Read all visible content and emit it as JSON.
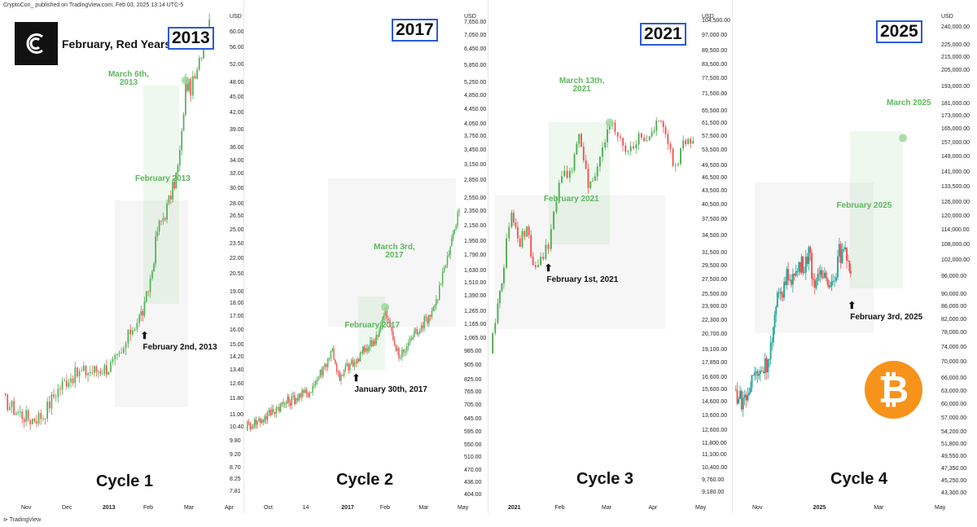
{
  "header": "CryptoCon_ published on TradingView.com, Feb 03, 2025 13:14 UTC-5",
  "title": "February, Red Years",
  "footer": "TradingView",
  "colors": {
    "up": "#26a69a",
    "up_green": "#4caf50",
    "down": "#ef5350",
    "annotation_green": "#5cb85c",
    "year_box": "#2a5bd7",
    "bitcoin": "#f7931a"
  },
  "icons": [
    "cryptocon-logo-icon",
    "bitcoin-icon",
    "arrow-up-icon",
    "tradingview-icon"
  ],
  "chart_data": [
    {
      "type": "candlestick",
      "cycle": "Cycle 1",
      "year_label": "2013",
      "unit": "USD",
      "scale": "log",
      "x_ticks": [
        "Nov",
        "Dec",
        "2013",
        "Feb",
        "Mar",
        "Apr"
      ],
      "y_ticks": [
        "64.00",
        "60.00",
        "56.00",
        "52.00",
        "48.00",
        "45.00",
        "42.00",
        "39.00",
        "36.00",
        "34.00",
        "32.00",
        "30.00",
        "28.00",
        "26.50",
        "25.00",
        "23.50",
        "22.00",
        "20.50",
        "19.00",
        "18.00",
        "17.00",
        "16.00",
        "15.00",
        "14.20",
        "13.40",
        "12.60",
        "11.80",
        "11.00",
        "10.40",
        "9.80",
        "9.20",
        "8.70",
        "8.25",
        "7.81"
      ],
      "ylim": [
        7.6,
        66
      ],
      "x_range": [
        "2012-10-15",
        "2013-04-08"
      ],
      "series": [
        [
          "2012-10-15",
          11.8
        ],
        [
          "2012-10-25",
          11.2
        ],
        [
          "2012-11-05",
          10.8
        ],
        [
          "2012-11-15",
          11.0
        ],
        [
          "2012-11-25",
          12.2
        ],
        [
          "2012-12-05",
          13.0
        ],
        [
          "2012-12-15",
          13.3
        ],
        [
          "2012-12-25",
          13.4
        ],
        [
          "2013-01-05",
          13.6
        ],
        [
          "2013-01-15",
          14.3
        ],
        [
          "2013-01-22",
          16.0
        ],
        [
          "2013-01-29",
          17.0
        ],
        [
          "2013-02-02",
          17.7
        ],
        [
          "2013-02-08",
          21.0
        ],
        [
          "2013-02-12",
          25.0
        ],
        [
          "2013-02-18",
          27.0
        ],
        [
          "2013-02-24",
          30.0
        ],
        [
          "2013-02-28",
          33.0
        ],
        [
          "2013-03-03",
          38.0
        ],
        [
          "2013-03-06",
          48.0
        ],
        [
          "2013-03-10",
          47.0
        ],
        [
          "2013-03-15",
          50.0
        ],
        [
          "2013-03-20",
          58.0
        ],
        [
          "2013-03-26",
          66.0
        ]
      ],
      "shade_range": [
        [
          "2013-01-10",
          11.4
        ],
        [
          "2013-03-08",
          28.5
        ]
      ],
      "green_box": [
        [
          "2013-02-01",
          18.0
        ],
        [
          "2013-03-01",
          47.5
        ]
      ],
      "annotations": [
        {
          "text": "February 2013",
          "color": "green",
          "at": [
            "2013-02-15",
            30.6
          ]
        },
        {
          "text": "February 2nd, 2013",
          "color": "black",
          "at": [
            "2013-02-02",
            16.1
          ],
          "arrow": true
        },
        {
          "text": "March 6th,\n2013",
          "color": "green",
          "at": [
            "2013-03-06",
            48.6
          ],
          "target": [
            "2013-03-06",
            48.6
          ]
        }
      ]
    },
    {
      "type": "candlestick",
      "cycle": "Cycle 2",
      "year_label": "2017",
      "unit": "USD",
      "scale": "log",
      "x_ticks": [
        "Oct",
        "14",
        "2017",
        "Feb",
        "Mar",
        "May"
      ],
      "y_ticks": [
        "7,650.00",
        "7,050.00",
        "6,450.00",
        "5,850.00",
        "5,250.00",
        "4,850.00",
        "4,450.00",
        "4,050.00",
        "3,750.00",
        "3,450.00",
        "3,150.00",
        "2,850.00",
        "2,550.00",
        "2,350.00",
        "2,150.00",
        "1,950.00",
        "1,790.00",
        "1,630.00",
        "1,510.00",
        "1,390.00",
        "1,265.00",
        "1,165.00",
        "1,065.00",
        "985.00",
        "905.00",
        "825.00",
        "765.00",
        "705.00",
        "645.00",
        "595.00",
        "550.00",
        "510.00",
        "470.00",
        "436.00",
        "404.00"
      ],
      "ylim": [
        395,
        8200
      ],
      "x_range": [
        "2016-10-01",
        "2017-05-25"
      ],
      "series": [
        [
          "2016-10-01",
          620
        ],
        [
          "2016-10-20",
          650
        ],
        [
          "2016-11-05",
          700
        ],
        [
          "2016-11-25",
          740
        ],
        [
          "2016-12-10",
          770
        ],
        [
          "2016-12-25",
          890
        ],
        [
          "2017-01-04",
          1000
        ],
        [
          "2017-01-12",
          820
        ],
        [
          "2017-01-20",
          900
        ],
        [
          "2017-01-30",
          920
        ],
        [
          "2017-02-08",
          1000
        ],
        [
          "2017-02-18",
          1050
        ],
        [
          "2017-02-26",
          1150
        ],
        [
          "2017-03-03",
          1270
        ],
        [
          "2017-03-10",
          1100
        ],
        [
          "2017-03-18",
          950
        ],
        [
          "2017-03-25",
          1000
        ],
        [
          "2017-04-01",
          1080
        ],
        [
          "2017-04-10",
          1150
        ],
        [
          "2017-04-20",
          1230
        ],
        [
          "2017-04-28",
          1350
        ],
        [
          "2017-05-05",
          1600
        ],
        [
          "2017-05-12",
          1800
        ],
        [
          "2017-05-18",
          2100
        ],
        [
          "2017-05-25",
          2500
        ]
      ],
      "shade_range": [
        [
          "2016-12-30",
          1150
        ],
        [
          "2017-05-20",
          2900
        ]
      ],
      "green_box": [
        [
          "2017-02-01",
          880
        ],
        [
          "2017-03-03",
          1390
        ]
      ],
      "annotations": [
        {
          "text": "February 2017",
          "color": "green",
          "at": [
            "2017-02-15",
            1120
          ]
        },
        {
          "text": "January 30th, 2017",
          "color": "black",
          "at": [
            "2017-01-30",
            870
          ],
          "arrow": true
        },
        {
          "text": "March 3rd,\n2017",
          "color": "green",
          "at": [
            "2017-03-03",
            1300
          ],
          "target": [
            "2017-03-03",
            1300
          ]
        }
      ]
    },
    {
      "type": "candlestick",
      "cycle": "Cycle 3",
      "year_label": "2021",
      "unit": "USD",
      "scale": "log",
      "x_ticks": [
        "2021",
        "Feb",
        "Mar",
        "Apr",
        "May"
      ],
      "y_ticks": [
        "104,500.00",
        "97,000.00",
        "89,500.00",
        "83,500.00",
        "77,500.00",
        "71,500.00",
        "65,500.00",
        "61,500.00",
        "57,500.00",
        "53,500.00",
        "49,500.00",
        "46,500.00",
        "43,500.00",
        "40,500.00",
        "37,500.00",
        "34,500.00",
        "31,500.00",
        "29,500.00",
        "27,500.00",
        "25,500.00",
        "23,900.00",
        "22,300.00",
        "20,700.00",
        "19,100.00",
        "17,850.00",
        "16,600.00",
        "15,600.00",
        "14,600.00",
        "13,600.00",
        "12,600.00",
        "11,800.00",
        "11,100.00",
        "10,400.00",
        "9,760.00",
        "9,180.00"
      ],
      "ylim": [
        8900,
        110000
      ],
      "x_range": [
        "2020-12-25",
        "2021-05-10"
      ],
      "series": [
        [
          "2020-12-25",
          19000
        ],
        [
          "2020-12-30",
          24000
        ],
        [
          "2021-01-03",
          30000
        ],
        [
          "2021-01-08",
          40000
        ],
        [
          "2021-01-12",
          33000
        ],
        [
          "2021-01-18",
          36000
        ],
        [
          "2021-01-22",
          30000
        ],
        [
          "2021-01-27",
          30500
        ],
        [
          "2021-02-01",
          33000
        ],
        [
          "2021-02-08",
          46000
        ],
        [
          "2021-02-15",
          48000
        ],
        [
          "2021-02-21",
          57000
        ],
        [
          "2021-02-27",
          45000
        ],
        [
          "2021-03-05",
          48000
        ],
        [
          "2021-03-10",
          57000
        ],
        [
          "2021-03-13",
          61000
        ],
        [
          "2021-03-20",
          58000
        ],
        [
          "2021-03-25",
          52000
        ],
        [
          "2021-04-01",
          59000
        ],
        [
          "2021-04-08",
          56000
        ],
        [
          "2021-04-14",
          64000
        ],
        [
          "2021-04-20",
          55000
        ],
        [
          "2021-04-25",
          49000
        ],
        [
          "2021-04-30",
          57000
        ],
        [
          "2021-05-08",
          58000
        ]
      ],
      "shade_range": [
        [
          "2020-12-28",
          21300
        ],
        [
          "2021-04-18",
          42500
        ]
      ],
      "green_box": [
        [
          "2021-02-01",
          33000
        ],
        [
          "2021-03-13",
          62000
        ]
      ],
      "annotations": [
        {
          "text": "February 2021",
          "color": "green",
          "at": [
            "2021-02-15",
            40500
          ]
        },
        {
          "text": "February 1st, 2021",
          "color": "black",
          "at": [
            "2021-02-01",
            30300
          ],
          "arrow": true
        },
        {
          "text": "March 13th,\n2021",
          "color": "green",
          "at": [
            "2021-03-13",
            62000
          ],
          "target": [
            "2021-03-13",
            62000
          ]
        }
      ]
    },
    {
      "type": "candlestick",
      "cycle": "Cycle 4",
      "year_label": "2025",
      "unit": "USD",
      "scale": "log",
      "x_ticks": [
        "Nov",
        "2025",
        "Mar",
        "May"
      ],
      "y_ticks": [
        "240,000.00",
        "225,000.00",
        "215,000.00",
        "205,000.00",
        "193,000.00",
        "181,000.00",
        "173,000.00",
        "165,000.00",
        "157,000.00",
        "149,000.00",
        "141,000.00",
        "133,500.00",
        "126,000.00",
        "120,000.00",
        "114,000.00",
        "108,000.00",
        "102,000.00",
        "96,000.00",
        "90,000.00",
        "86,000.00",
        "82,000.00",
        "78,000.00",
        "74,000.00",
        "70,000.00",
        "66,000.00",
        "63,000.00",
        "60,000.00",
        "57,000.00",
        "54,200.00",
        "51,800.00",
        "49,550.00",
        "47,350.00",
        "45,250.00",
        "43,300.00"
      ],
      "ylim": [
        42500,
        255000
      ],
      "x_range": [
        "2024-09-25",
        "2025-05-10"
      ],
      "series": [
        [
          "2024-09-25",
          63000
        ],
        [
          "2024-10-03",
          61000
        ],
        [
          "2024-10-10",
          62000
        ],
        [
          "2024-10-16",
          67000
        ],
        [
          "2024-10-24",
          68000
        ],
        [
          "2024-10-31",
          70000
        ],
        [
          "2024-11-06",
          76000
        ],
        [
          "2024-11-12",
          88000
        ],
        [
          "2024-11-18",
          92000
        ],
        [
          "2024-11-24",
          97000
        ],
        [
          "2024-12-01",
          96000
        ],
        [
          "2024-12-06",
          100000
        ],
        [
          "2024-12-12",
          101000
        ],
        [
          "2024-12-17",
          106000
        ],
        [
          "2024-12-22",
          95000
        ],
        [
          "2024-12-27",
          94000
        ],
        [
          "2025-01-02",
          97000
        ],
        [
          "2025-01-07",
          96000
        ],
        [
          "2025-01-13",
          94000
        ],
        [
          "2025-01-20",
          105000
        ],
        [
          "2025-01-25",
          104000
        ],
        [
          "2025-01-30",
          104000
        ],
        [
          "2025-02-03",
          94000
        ]
      ],
      "shade_range": [
        [
          "2024-10-18",
          78000
        ],
        [
          "2025-02-27",
          136000
        ]
      ],
      "green_box": [
        [
          "2025-02-01",
          92000
        ],
        [
          "2025-04-01",
          164000
        ]
      ],
      "annotations": [
        {
          "text": "February 2025",
          "color": "green",
          "at": [
            "2025-02-15",
            122000
          ]
        },
        {
          "text": "February 3rd, 2025",
          "color": "black",
          "at": [
            "2025-02-03",
            88500
          ],
          "arrow": true
        },
        {
          "text": "March 2025",
          "color": "green",
          "at": [
            "2025-04-01",
            160000
          ],
          "target": [
            "2025-04-01",
            160000
          ]
        }
      ]
    }
  ]
}
